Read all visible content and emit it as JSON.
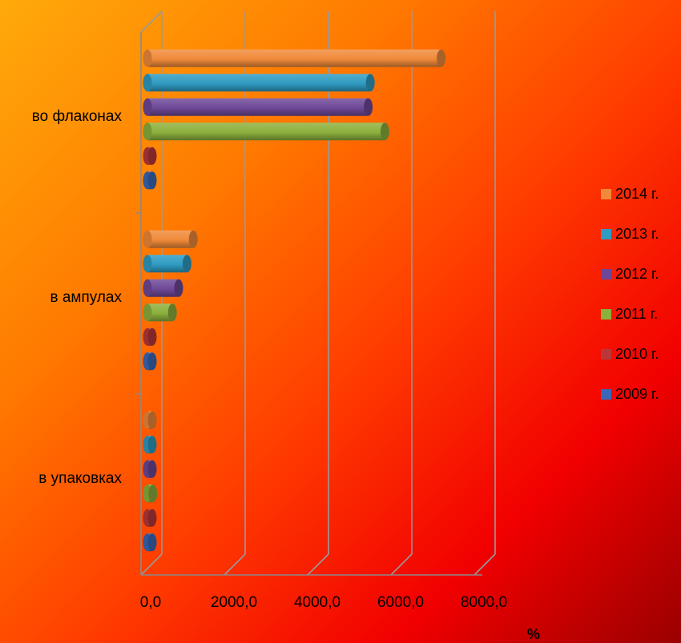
{
  "chart_data": {
    "type": "bar",
    "orientation": "horizontal",
    "categories": [
      "во флаконах",
      "в ампулах",
      "в упаковках"
    ],
    "series": [
      {
        "name": "2009 г.",
        "color": "#3a68b8",
        "values": [
          80,
          80,
          80
        ]
      },
      {
        "name": "2010 г.",
        "color": "#b8383a",
        "values": [
          110,
          110,
          100
        ]
      },
      {
        "name": "2011 г.",
        "color": "#8cb03c",
        "values": [
          5700,
          600,
          130
        ]
      },
      {
        "name": "2012 г.",
        "color": "#6e4898",
        "values": [
          5300,
          750,
          90
        ]
      },
      {
        "name": "2013 г.",
        "color": "#2f9bc2",
        "values": [
          5350,
          950,
          80
        ]
      },
      {
        "name": "2014 г.",
        "color": "#f08a3a",
        "values": [
          7050,
          1100,
          100
        ]
      }
    ],
    "xticks": [
      "0,0",
      "2000,0",
      "4000,0",
      "6000,0",
      "8000,0"
    ],
    "xlim": [
      0,
      8000
    ],
    "xlabel": "%",
    "legend_position": "right",
    "grid": true
  }
}
